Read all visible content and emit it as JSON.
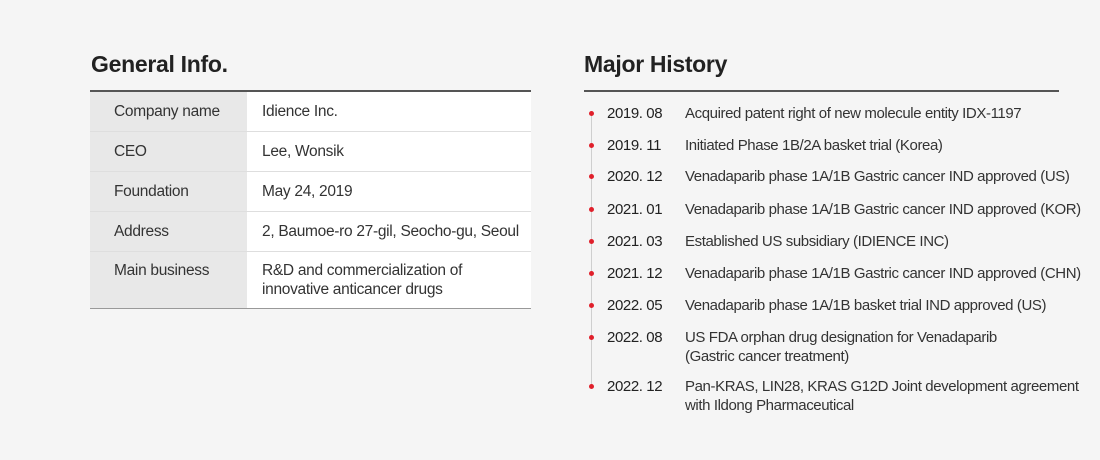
{
  "general": {
    "title": "General Info.",
    "rows": [
      {
        "label": "Company name",
        "value": "Idience Inc."
      },
      {
        "label": "CEO",
        "value": "Lee, Wonsik"
      },
      {
        "label": "Foundation",
        "value": "May 24, 2019"
      },
      {
        "label": "Address",
        "value": "2, Baumoe-ro 27-gil, Seocho-gu, Seoul"
      },
      {
        "label": "Main business",
        "value": "R&D and commercialization of\ninnovative anticancer drugs"
      }
    ]
  },
  "history": {
    "title": "Major History",
    "accent_color": "#e0202b",
    "items": [
      {
        "date": "2019. 08",
        "text": "Acquired patent right of new molecule entity IDX-1197"
      },
      {
        "date": "2019. 11",
        "text": "Initiated Phase 1B/2A basket trial (Korea)"
      },
      {
        "date": "2020. 12",
        "text": "Venadaparib phase 1A/1B Gastric cancer IND approved (US)"
      },
      {
        "date": "2021. 01",
        "text": "Venadaparib phase 1A/1B Gastric cancer IND approved (KOR)"
      },
      {
        "date": "2021. 03",
        "text": "Established US subsidiary (IDIENCE INC)"
      },
      {
        "date": "2021. 12",
        "text": "Venadaparib phase 1A/1B Gastric cancer IND approved (CHN)"
      },
      {
        "date": "2022. 05",
        "text": "Venadaparib phase 1A/1B basket trial IND approved (US)"
      },
      {
        "date": "2022. 08",
        "text": "US FDA orphan drug designation for Venadaparib\n(Gastric cancer treatment)"
      },
      {
        "date": "2022. 12",
        "text": "Pan-KRAS, LIN28, KRAS G12D Joint development agreement\nwith Ildong Pharmaceutical"
      }
    ]
  }
}
